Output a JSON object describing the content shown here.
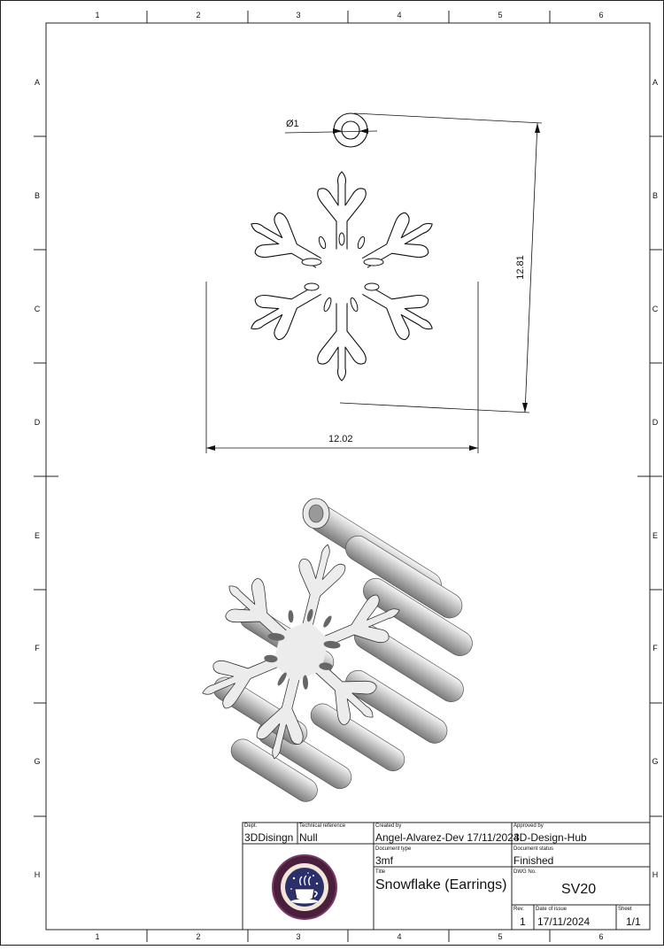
{
  "frame": {
    "columns": [
      "1",
      "2",
      "3",
      "4",
      "5",
      "6"
    ],
    "rows": [
      "A",
      "B",
      "C",
      "D",
      "E",
      "F",
      "G",
      "H"
    ]
  },
  "dimensions": {
    "hole": "Ø1",
    "height": "12.81",
    "width": "12.02"
  },
  "title_block": {
    "dept_label": "Dept.",
    "dept_value": "3DDisingn",
    "techref_label": "Technical reference",
    "techref_value": "Null",
    "created_label": "Created by",
    "created_value": "Angel-Alvarez-Dev 17/11/2024",
    "approved_label": "Approved by",
    "approved_value": "3D-Design-Hub",
    "doctype_label": "Document type",
    "doctype_value": "3mf",
    "docstatus_label": "Document status",
    "docstatus_value": "Finished",
    "title_label": "Title",
    "title_value": "Snowflake (Earrings)",
    "dwg_label": "DWG No.",
    "dwg_value": "SV20",
    "rev_label": "Rev.",
    "rev_value": "1",
    "date_label": "Date of issue",
    "date_value": "17/11/2024",
    "sheet_label": "Sheet",
    "sheet_value": "1/1",
    "logo_text": "3D DESIGN HUB"
  }
}
